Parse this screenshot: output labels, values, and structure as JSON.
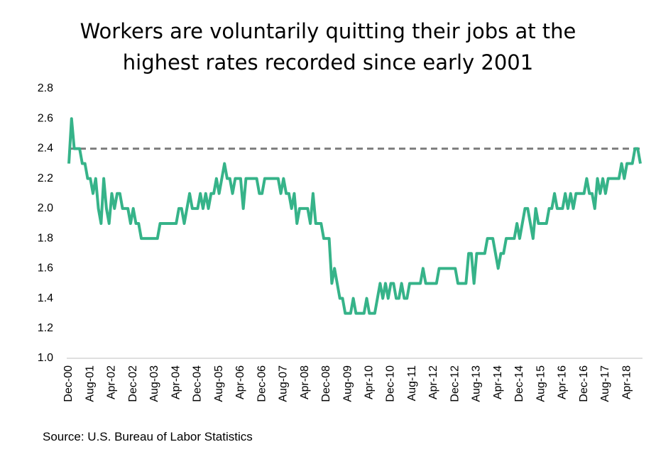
{
  "chart_data": {
    "type": "line",
    "title": "Workers are voluntarily quitting their jobs at the highest rates recorded since early 2001",
    "source": "Source: U.S. Bureau of Labor Statistics",
    "categories": [
      "Dec-00",
      null,
      null,
      null,
      null,
      null,
      null,
      null,
      "Aug-01",
      null,
      null,
      null,
      null,
      null,
      null,
      null,
      "Apr-02",
      null,
      null,
      null,
      null,
      null,
      null,
      null,
      "Dec-02",
      null,
      null,
      null,
      null,
      null,
      null,
      null,
      "Aug-03",
      null,
      null,
      null,
      null,
      null,
      null,
      null,
      "Apr-04",
      null,
      null,
      null,
      null,
      null,
      null,
      null,
      "Dec-04",
      null,
      null,
      null,
      null,
      null,
      null,
      null,
      "Aug-05",
      null,
      null,
      null,
      null,
      null,
      null,
      null,
      "Apr-06",
      null,
      null,
      null,
      null,
      null,
      null,
      null,
      "Dec-06",
      null,
      null,
      null,
      null,
      null,
      null,
      null,
      "Aug-07",
      null,
      null,
      null,
      null,
      null,
      null,
      null,
      "Apr-08",
      null,
      null,
      null,
      null,
      null,
      null,
      null,
      "Dec-08",
      null,
      null,
      null,
      null,
      null,
      null,
      null,
      "Aug-09",
      null,
      null,
      null,
      null,
      null,
      null,
      null,
      "Apr-10",
      null,
      null,
      null,
      null,
      null,
      null,
      null,
      "Dec-10",
      null,
      null,
      null,
      null,
      null,
      null,
      null,
      "Aug-11",
      null,
      null,
      null,
      null,
      null,
      null,
      null,
      "Apr-12",
      null,
      null,
      null,
      null,
      null,
      null,
      null,
      "Dec-12",
      null,
      null,
      null,
      null,
      null,
      null,
      null,
      "Aug-13",
      null,
      null,
      null,
      null,
      null,
      null,
      null,
      "Apr-14",
      null,
      null,
      null,
      null,
      null,
      null,
      null,
      "Dec-14",
      null,
      null,
      null,
      null,
      null,
      null,
      null,
      "Aug-15",
      null,
      null,
      null,
      null,
      null,
      null,
      null,
      "Apr-16",
      null,
      null,
      null,
      null,
      null,
      null,
      null,
      "Dec-16",
      null,
      null,
      null,
      null,
      null,
      null,
      null,
      "Aug-17",
      null,
      null,
      null,
      null,
      null,
      null,
      null,
      "Apr-18",
      null,
      null,
      null,
      null,
      null
    ],
    "series": [
      {
        "color": "#36b389",
        "values": [
          2.3,
          2.6,
          2.4,
          2.4,
          2.4,
          2.3,
          2.3,
          2.2,
          2.2,
          2.1,
          2.2,
          2.0,
          1.9,
          2.2,
          2.0,
          1.9,
          2.1,
          2.0,
          2.1,
          2.1,
          2.0,
          2.0,
          2.0,
          1.9,
          2.0,
          1.9,
          1.9,
          1.8,
          1.8,
          1.8,
          1.8,
          1.8,
          1.8,
          1.8,
          1.9,
          1.9,
          1.9,
          1.9,
          1.9,
          1.9,
          1.9,
          2.0,
          2.0,
          1.9,
          2.0,
          2.1,
          2.0,
          2.0,
          2.0,
          2.1,
          2.0,
          2.1,
          2.0,
          2.1,
          2.1,
          2.2,
          2.1,
          2.2,
          2.3,
          2.2,
          2.2,
          2.1,
          2.2,
          2.2,
          2.2,
          2.0,
          2.2,
          2.2,
          2.2,
          2.2,
          2.2,
          2.1,
          2.1,
          2.2,
          2.2,
          2.2,
          2.2,
          2.2,
          2.2,
          2.1,
          2.2,
          2.1,
          2.1,
          2.0,
          2.1,
          1.9,
          2.0,
          2.0,
          2.0,
          2.0,
          1.9,
          2.1,
          1.9,
          1.9,
          1.9,
          1.8,
          1.8,
          1.8,
          1.5,
          1.6,
          1.5,
          1.4,
          1.4,
          1.3,
          1.3,
          1.3,
          1.4,
          1.3,
          1.3,
          1.3,
          1.3,
          1.4,
          1.3,
          1.3,
          1.3,
          1.4,
          1.5,
          1.4,
          1.5,
          1.4,
          1.5,
          1.5,
          1.4,
          1.4,
          1.5,
          1.4,
          1.4,
          1.5,
          1.5,
          1.5,
          1.5,
          1.5,
          1.6,
          1.5,
          1.5,
          1.5,
          1.5,
          1.5,
          1.6,
          1.6,
          1.6,
          1.6,
          1.6,
          1.6,
          1.6,
          1.5,
          1.5,
          1.5,
          1.5,
          1.7,
          1.7,
          1.5,
          1.7,
          1.7,
          1.7,
          1.7,
          1.8,
          1.8,
          1.8,
          1.7,
          1.6,
          1.7,
          1.7,
          1.8,
          1.8,
          1.8,
          1.8,
          1.9,
          1.8,
          1.9,
          2.0,
          2.0,
          1.9,
          1.8,
          2.0,
          1.9,
          1.9,
          1.9,
          1.9,
          2.0,
          2.0,
          2.1,
          2.0,
          2.0,
          2.0,
          2.1,
          2.0,
          2.1,
          2.0,
          2.1,
          2.1,
          2.1,
          2.1,
          2.2,
          2.1,
          2.1,
          2.0,
          2.2,
          2.1,
          2.2,
          2.1,
          2.2,
          2.2,
          2.2,
          2.2,
          2.2,
          2.3,
          2.2,
          2.3,
          2.3,
          2.3,
          2.4,
          2.4,
          2.3
        ]
      }
    ],
    "reference_line": {
      "value": 2.4,
      "color": "#808080",
      "style": "dashed"
    },
    "ylim": [
      1.0,
      2.8
    ],
    "yticks": [
      {
        "value": 1,
        "label": "1.0"
      },
      1.2,
      1.4,
      1.6,
      1.8,
      {
        "value": 2,
        "label": "2.0"
      },
      2.2,
      2.4,
      2.6,
      2.8
    ]
  }
}
